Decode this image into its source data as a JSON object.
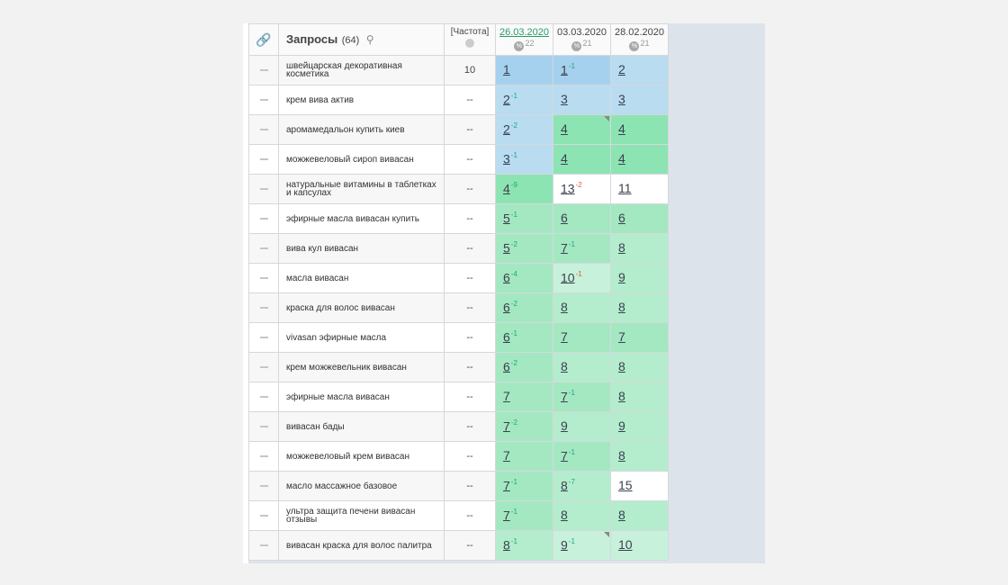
{
  "header": {
    "query_title": "Запросы",
    "query_count": "(64)",
    "freq_title": "[Частота]",
    "dates": [
      {
        "label": "26.03.2020",
        "badge": "22",
        "current": true
      },
      {
        "label": "03.03.2020",
        "badge": "21",
        "current": false
      },
      {
        "label": "28.02.2020",
        "badge": "21",
        "current": false
      }
    ]
  },
  "colors": {
    "blue_dark": "#a5d1ee",
    "blue": "#b9dcf1",
    "green_dark": "#8de4b3",
    "green": "#a4e8c2",
    "green_light": "#b4edcd",
    "green_pale": "#c7f1db",
    "white": "#ffffff"
  },
  "rows": [
    {
      "query": "швейцарская декоративная косметика",
      "freq": "10",
      "pos": [
        {
          "v": "1",
          "c": "blue_dark"
        },
        {
          "v": "1",
          "d": "-1",
          "dir": "up",
          "c": "blue_dark"
        },
        {
          "v": "2",
          "c": "blue"
        }
      ]
    },
    {
      "query": "крем вива актив",
      "freq": "--",
      "pos": [
        {
          "v": "2",
          "d": "-1",
          "dir": "up",
          "c": "blue"
        },
        {
          "v": "3",
          "c": "blue"
        },
        {
          "v": "3",
          "c": "blue"
        }
      ]
    },
    {
      "query": "аромамедальон купить киев",
      "freq": "--",
      "pos": [
        {
          "v": "2",
          "d": "-2",
          "dir": "up",
          "c": "blue"
        },
        {
          "v": "4",
          "c": "green_dark",
          "corner": true
        },
        {
          "v": "4",
          "c": "green_dark"
        }
      ]
    },
    {
      "query": "можжевеловый сироп вивасан",
      "freq": "--",
      "pos": [
        {
          "v": "3",
          "d": "-1",
          "dir": "up",
          "c": "blue"
        },
        {
          "v": "4",
          "c": "green_dark"
        },
        {
          "v": "4",
          "c": "green_dark"
        }
      ]
    },
    {
      "query": "натуральные витамины в таблетках и капсулах",
      "freq": "--",
      "pos": [
        {
          "v": "4",
          "d": "-9",
          "dir": "up",
          "c": "green_dark"
        },
        {
          "v": "13",
          "d": "-2",
          "dir": "down",
          "c": "white"
        },
        {
          "v": "11",
          "c": "white"
        }
      ]
    },
    {
      "query": "эфирные масла вивасан купить",
      "freq": "--",
      "pos": [
        {
          "v": "5",
          "d": "-1",
          "dir": "up",
          "c": "green"
        },
        {
          "v": "6",
          "c": "green"
        },
        {
          "v": "6",
          "c": "green"
        }
      ]
    },
    {
      "query": "вива кул вивасан",
      "freq": "--",
      "pos": [
        {
          "v": "5",
          "d": "-2",
          "dir": "up",
          "c": "green"
        },
        {
          "v": "7",
          "d": "-1",
          "dir": "up",
          "c": "green"
        },
        {
          "v": "8",
          "c": "green_light"
        }
      ]
    },
    {
      "query": "масла вивасан",
      "freq": "--",
      "pos": [
        {
          "v": "6",
          "d": "-4",
          "dir": "up",
          "c": "green"
        },
        {
          "v": "10",
          "d": "-1",
          "dir": "down",
          "c": "green_pale"
        },
        {
          "v": "9",
          "c": "green_light"
        }
      ]
    },
    {
      "query": "краска для волос вивасан",
      "freq": "--",
      "pos": [
        {
          "v": "6",
          "d": "-2",
          "dir": "up",
          "c": "green"
        },
        {
          "v": "8",
          "c": "green_light"
        },
        {
          "v": "8",
          "c": "green_light"
        }
      ]
    },
    {
      "query": "vivasan эфирные масла",
      "freq": "--",
      "pos": [
        {
          "v": "6",
          "d": "-1",
          "dir": "up",
          "c": "green"
        },
        {
          "v": "7",
          "c": "green"
        },
        {
          "v": "7",
          "c": "green"
        }
      ]
    },
    {
      "query": "крем можжевельник вивасан",
      "freq": "--",
      "pos": [
        {
          "v": "6",
          "d": "-2",
          "dir": "up",
          "c": "green"
        },
        {
          "v": "8",
          "c": "green_light"
        },
        {
          "v": "8",
          "c": "green_light"
        }
      ]
    },
    {
      "query": "эфирные масла вивасан",
      "freq": "--",
      "pos": [
        {
          "v": "7",
          "c": "green"
        },
        {
          "v": "7",
          "d": "-1",
          "dir": "up",
          "c": "green"
        },
        {
          "v": "8",
          "c": "green_light"
        }
      ]
    },
    {
      "query": "вивасан бады",
      "freq": "--",
      "pos": [
        {
          "v": "7",
          "d": "-2",
          "dir": "up",
          "c": "green"
        },
        {
          "v": "9",
          "c": "green_light"
        },
        {
          "v": "9",
          "c": "green_light"
        }
      ]
    },
    {
      "query": "можжевеловый крем вивасан",
      "freq": "--",
      "pos": [
        {
          "v": "7",
          "c": "green"
        },
        {
          "v": "7",
          "d": "-1",
          "dir": "up",
          "c": "green"
        },
        {
          "v": "8",
          "c": "green_light"
        }
      ]
    },
    {
      "query": "масло массажное базовое",
      "freq": "--",
      "pos": [
        {
          "v": "7",
          "d": "-1",
          "dir": "up",
          "c": "green"
        },
        {
          "v": "8",
          "d": "-7",
          "dir": "up",
          "c": "green_light"
        },
        {
          "v": "15",
          "c": "white"
        }
      ]
    },
    {
      "query": "ультра защита печени вивасан отзывы",
      "freq": "--",
      "pos": [
        {
          "v": "7",
          "d": "-1",
          "dir": "up",
          "c": "green"
        },
        {
          "v": "8",
          "c": "green_light"
        },
        {
          "v": "8",
          "c": "green_light"
        }
      ]
    },
    {
      "query": "вивасан краска для волос палитра",
      "freq": "--",
      "pos": [
        {
          "v": "8",
          "d": "-1",
          "dir": "up",
          "c": "green_light"
        },
        {
          "v": "9",
          "d": "-1",
          "dir": "up",
          "c": "green_pale",
          "corner": true
        },
        {
          "v": "10",
          "c": "green_pale"
        }
      ]
    }
  ]
}
